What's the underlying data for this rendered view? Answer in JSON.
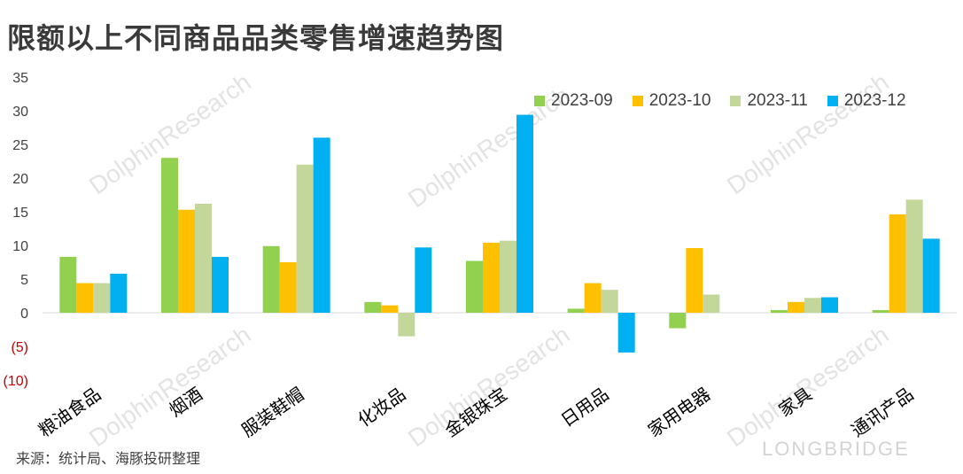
{
  "title": "限额以上不同商品品类零售增速趋势图",
  "source": "来源：统计局、海豚投研整理",
  "brand": "LONGBRIDGE",
  "watermark": {
    "cn": "海豚投研",
    "en": "DolphinResearch"
  },
  "colors": {
    "s1": "#92d050",
    "s2": "#ffc000",
    "s3": "#c4d79b",
    "s4": "#00b0f0",
    "axis_text": "#404040",
    "negative_text": "#c00000"
  },
  "chart_data": {
    "type": "bar",
    "categories": [
      "粮油食品",
      "烟酒",
      "服装鞋帽",
      "化妆品",
      "金银珠宝",
      "日用品",
      "家用电器",
      "家具",
      "通讯产品"
    ],
    "series": [
      {
        "name": "2023-09",
        "values": [
          8.3,
          23.0,
          9.9,
          1.6,
          7.7,
          0.6,
          -2.3,
          0.4,
          0.4
        ]
      },
      {
        "name": "2023-10",
        "values": [
          4.4,
          15.3,
          7.5,
          1.1,
          10.4,
          4.4,
          9.6,
          1.6,
          14.6
        ]
      },
      {
        "name": "2023-11",
        "values": [
          4.4,
          16.2,
          22.0,
          -3.5,
          10.7,
          3.4,
          2.7,
          2.2,
          16.8
        ]
      },
      {
        "name": "2023-12",
        "values": [
          5.8,
          8.3,
          26.0,
          9.7,
          29.4,
          -5.9,
          null,
          2.3,
          11.0
        ]
      }
    ],
    "yticks": [
      "35",
      "30",
      "25",
      "20",
      "15",
      "10",
      "5",
      "0",
      "(5)",
      "(10)"
    ],
    "ylim": [
      -10,
      35
    ],
    "legend_position": "top-right",
    "grid": false
  }
}
